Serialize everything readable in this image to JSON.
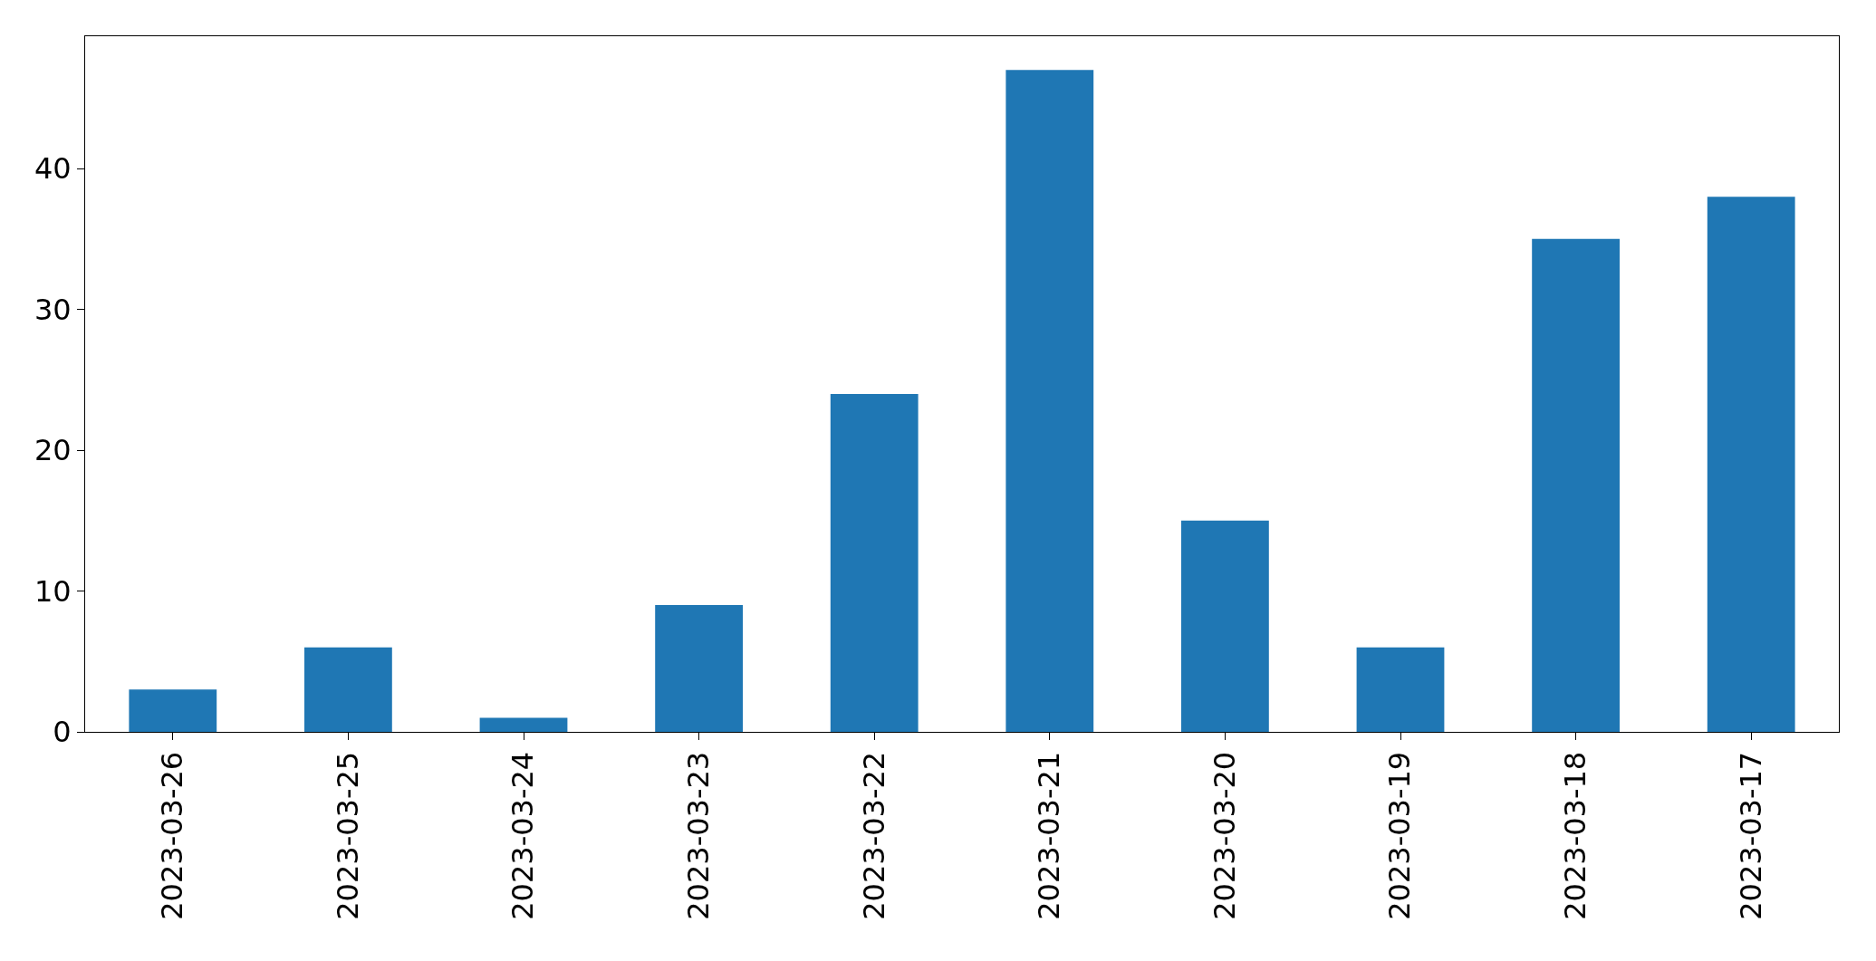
{
  "chart_data": {
    "type": "bar",
    "categories": [
      "2023-03-26",
      "2023-03-25",
      "2023-03-24",
      "2023-03-23",
      "2023-03-22",
      "2023-03-21",
      "2023-03-20",
      "2023-03-19",
      "2023-03-18",
      "2023-03-17"
    ],
    "values": [
      3,
      6,
      1,
      9,
      24,
      47,
      15,
      6,
      35,
      38
    ],
    "color": "#1f77b4",
    "ylim": [
      0,
      49.4
    ],
    "yticks": [
      0,
      10,
      20,
      30,
      40
    ],
    "legend": false
  }
}
